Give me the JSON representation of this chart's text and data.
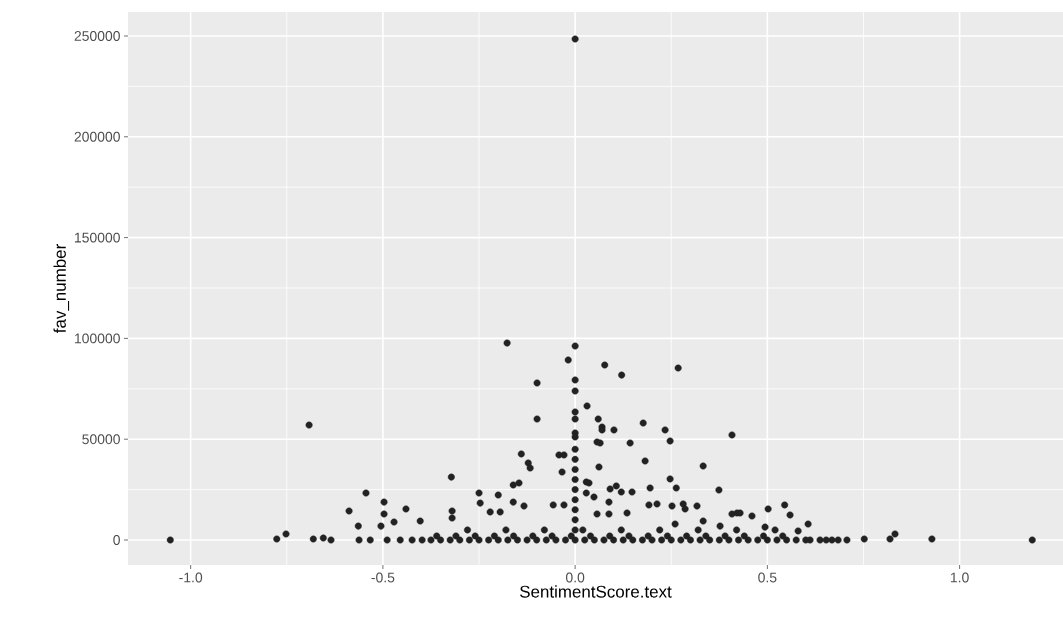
{
  "chart_data": {
    "type": "scatter",
    "xlabel": "SentimentScore.text",
    "ylabel": "fav_number",
    "xlim": [
      -1.163,
      1.269
    ],
    "ylim": [
      -12400,
      261900
    ],
    "xticks": [
      {
        "value": -1.0,
        "label": "-1.0"
      },
      -0.5,
      {
        "value": 0.0,
        "label": "0.0"
      },
      0.5,
      {
        "value": 1.0,
        "label": "1.0"
      }
    ],
    "yticks": [
      0,
      50000,
      100000,
      150000,
      200000,
      250000
    ],
    "grid": true,
    "series": [
      {
        "color": "#222222",
        "x": [
          0.0,
          -1.053,
          -0.692,
          -0.776,
          -0.752,
          -0.681,
          -0.655,
          -0.635,
          -0.588,
          -0.564,
          -0.544,
          -0.497,
          -0.497,
          -0.505,
          -0.44,
          -0.471,
          -0.403,
          -0.562,
          -0.533,
          -0.489,
          -0.455,
          -0.424,
          -0.398,
          -0.177,
          0.0,
          -0.018,
          -0.099,
          -0.099,
          0.0,
          0.0,
          0.031,
          0.0,
          0.0,
          0.0,
          0.0,
          -0.14,
          -0.122,
          -0.117,
          -0.042,
          -0.029,
          -0.034,
          -0.322,
          -0.25,
          -0.247,
          -0.2,
          -0.161,
          -0.146,
          -0.161,
          -0.32,
          -0.32,
          -0.133,
          -0.029,
          -0.057,
          -0.221,
          -0.195,
          0.0,
          0.0,
          0.0,
          0.0,
          0.0,
          0.0,
          0.0,
          0.0,
          0.0,
          0.0,
          0.077,
          0.121,
          0.268,
          0.06,
          0.07,
          0.07,
          0.101,
          0.177,
          0.234,
          0.247,
          0.408,
          0.057,
          0.065,
          0.143,
          0.062,
          0.182,
          0.333,
          0.247,
          0.263,
          0.374,
          0.195,
          0.091,
          0.107,
          0.12,
          0.148,
          0.029,
          0.036,
          0.029,
          0.049,
          0.088,
          0.192,
          0.213,
          0.252,
          0.281,
          0.286,
          0.317,
          0.057,
          0.088,
          0.135,
          0.408,
          0.421,
          0.46,
          0.333,
          0.26,
          0.377,
          0.545,
          0.502,
          0.559,
          0.429,
          0.494,
          0.606,
          0.58,
          0.832,
          0.819,
          0.928,
          1.189,
          0.752,
          0.707,
          0.637,
          0.653,
          0.668,
          0.684,
          0.611,
          -0.375,
          -0.35,
          -0.325,
          -0.3,
          -0.275,
          -0.25,
          -0.225,
          -0.2,
          -0.175,
          -0.15,
          -0.125,
          -0.1,
          -0.075,
          -0.05,
          -0.025,
          0.025,
          0.05,
          0.075,
          0.1,
          0.125,
          0.15,
          0.175,
          0.2,
          0.225,
          0.25,
          0.275,
          0.3,
          0.325,
          0.35,
          0.375,
          0.4,
          0.425,
          0.45,
          0.475,
          0.5,
          0.525,
          0.55,
          0.575,
          0.6,
          -0.36,
          -0.31,
          -0.26,
          -0.21,
          -0.16,
          -0.11,
          -0.06,
          -0.01,
          0.04,
          0.09,
          0.14,
          0.19,
          0.24,
          0.29,
          0.34,
          0.39,
          0.44,
          0.49,
          0.54,
          -0.28,
          -0.18,
          -0.08,
          0.02,
          0.12,
          0.22,
          0.32,
          0.42,
          0.52
        ],
        "values": [
          248500,
          0,
          57000,
          500,
          3000,
          500,
          1000,
          0,
          14400,
          6900,
          23300,
          18800,
          12900,
          6900,
          15400,
          8900,
          9400,
          0,
          0,
          0,
          0,
          0,
          0,
          97700,
          96200,
          89300,
          77900,
          60000,
          79400,
          73900,
          66500,
          63500,
          60000,
          53100,
          51100,
          42700,
          38200,
          35700,
          42200,
          42200,
          33700,
          31200,
          23300,
          18300,
          22300,
          27300,
          28300,
          18800,
          14400,
          10900,
          16900,
          17400,
          17400,
          13900,
          13900,
          45000,
          40000,
          35000,
          30000,
          25000,
          20000,
          15000,
          10000,
          5000,
          0,
          86800,
          81800,
          85300,
          60000,
          56000,
          54600,
          54600,
          58000,
          54600,
          49100,
          52100,
          48600,
          48100,
          48100,
          36200,
          39200,
          36700,
          30300,
          25800,
          24800,
          25800,
          25300,
          26800,
          23800,
          23800,
          28800,
          28300,
          23300,
          21300,
          18800,
          17400,
          17900,
          16900,
          17900,
          15400,
          16900,
          12900,
          12900,
          13400,
          12900,
          13400,
          11900,
          9400,
          7900,
          6900,
          17400,
          15400,
          12400,
          13400,
          6400,
          7900,
          4500,
          3000,
          500,
          500,
          0,
          500,
          0,
          0,
          0,
          0,
          0,
          0,
          0,
          0,
          0,
          0,
          0,
          0,
          0,
          0,
          0,
          0,
          0,
          0,
          0,
          0,
          0,
          0,
          0,
          0,
          0,
          0,
          0,
          0,
          0,
          0,
          0,
          0,
          0,
          0,
          0,
          0,
          0,
          0,
          0,
          0,
          0,
          0,
          0,
          0,
          0,
          2000,
          2000,
          2000,
          2000,
          2000,
          2000,
          2000,
          2000,
          2000,
          2000,
          2000,
          2000,
          2000,
          2000,
          2000,
          2000,
          2000,
          2000,
          2000,
          5000,
          5000,
          5000,
          5000,
          5000,
          5000,
          5000,
          5000,
          5000
        ]
      }
    ]
  }
}
